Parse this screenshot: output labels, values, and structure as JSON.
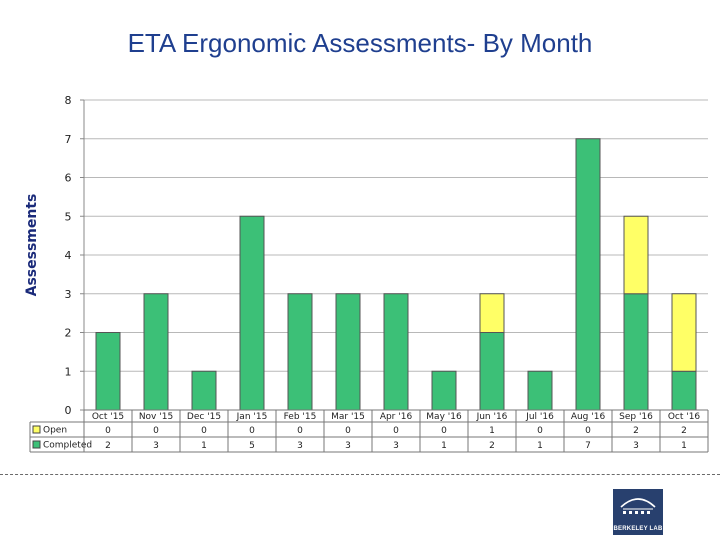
{
  "chart_data": {
    "type": "bar",
    "stacked": true,
    "title": "ETA Ergonomic Assessments- By Month",
    "ylabel": "Assessments",
    "xlabel": "",
    "ylim": [
      0,
      8
    ],
    "yticks": [
      0,
      1,
      2,
      3,
      4,
      5,
      6,
      7,
      8
    ],
    "categories": [
      "Oct '15",
      "Nov '15",
      "Dec '15",
      "Jan '15",
      "Feb '15",
      "Mar '15",
      "Apr '16",
      "May '16",
      "Jun '16",
      "Jul '16",
      "Aug '16",
      "Sep '16",
      "Oct '16"
    ],
    "series": [
      {
        "name": "Completed",
        "color": "#3cc077",
        "values": [
          2,
          3,
          1,
          5,
          3,
          3,
          3,
          1,
          2,
          1,
          7,
          3,
          1
        ]
      },
      {
        "name": "Open",
        "color": "#ffff66",
        "values": [
          0,
          0,
          0,
          0,
          0,
          0,
          0,
          0,
          1,
          0,
          0,
          2,
          2
        ]
      }
    ],
    "legend": "data-table-below"
  },
  "logo": {
    "text": "BERKELEY LAB"
  }
}
